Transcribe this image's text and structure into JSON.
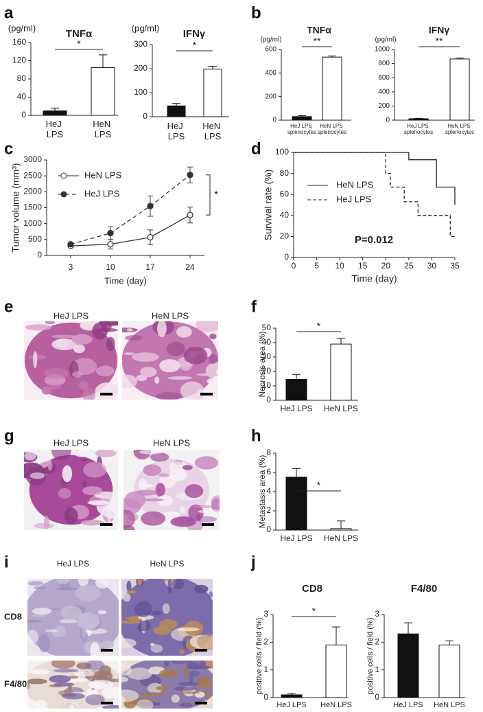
{
  "panel_labels": [
    "a",
    "b",
    "c",
    "d",
    "e",
    "f",
    "g",
    "h",
    "i",
    "j"
  ],
  "chart_data": [
    {
      "type": "bar",
      "title": "TNFα",
      "ylabel": "(pg/ml)",
      "categories": [
        "HeJ\nLPS",
        "HeN\nLPS"
      ],
      "values": [
        10,
        105
      ],
      "errors": [
        6,
        28
      ],
      "colors": [
        "#111111",
        "#ffffff"
      ],
      "ylim": [
        0,
        160
      ],
      "yticks": [
        0,
        40,
        80,
        120,
        160
      ],
      "significance": "*"
    },
    {
      "type": "bar",
      "title": "IFNγ",
      "ylabel": "(pg/ml)",
      "categories": [
        "HeJ\nLPS",
        "HeN\nLPS"
      ],
      "values": [
        45,
        198
      ],
      "errors": [
        10,
        12
      ],
      "colors": [
        "#111111",
        "#ffffff"
      ],
      "ylim": [
        0,
        300
      ],
      "yticks": [
        0,
        100,
        200,
        300
      ],
      "significance": "*"
    },
    {
      "type": "bar",
      "title": "TNFα",
      "ylabel": "(pg/ml)",
      "categories": [
        "HeJ LPS\nsplenocytes",
        "HeN LPS\nsplenocytes"
      ],
      "values": [
        30,
        535
      ],
      "errors": [
        8,
        10
      ],
      "colors": [
        "#111111",
        "#ffffff"
      ],
      "ylim": [
        0,
        600
      ],
      "yticks": [
        0,
        200,
        400,
        600
      ],
      "significance": "**"
    },
    {
      "type": "bar",
      "title": "IFNγ",
      "ylabel": "(pg/ml)",
      "categories": [
        "HeJ LPS\nsplenocytes",
        "HeN LPS\nsplenocytes"
      ],
      "values": [
        20,
        865
      ],
      "errors": [
        5,
        15
      ],
      "colors": [
        "#111111",
        "#ffffff"
      ],
      "ylim": [
        0,
        1000
      ],
      "yticks": [
        0,
        200,
        400,
        600,
        800,
        1000
      ],
      "significance": "**"
    },
    {
      "type": "line",
      "ylabel": "Tumor volume (mm³)",
      "xlabel": "Time (day)",
      "categories": [
        "3",
        "10",
        "17",
        "24"
      ],
      "series": [
        {
          "name": "HeN LPS",
          "color": "#333333",
          "line_style": "solid",
          "marker": "open",
          "values": [
            300,
            350,
            570,
            1270
          ],
          "errors": [
            40,
            150,
            230,
            250
          ]
        },
        {
          "name": "HeJ LPS",
          "color": "#333333",
          "line_style": "dashed",
          "marker": "filled",
          "values": [
            350,
            700,
            1550,
            2530
          ],
          "errors": [
            30,
            200,
            320,
            250
          ]
        }
      ],
      "ylim": [
        0,
        3000
      ],
      "yticks": [
        0,
        500,
        1000,
        1500,
        2000,
        2500,
        3000
      ],
      "significance": "*"
    },
    {
      "type": "step",
      "ylabel": "Survival rate (%)",
      "xlabel": "Time (day)",
      "annotation": "P=0.012",
      "series": [
        {
          "name": "HeN LPS",
          "color": "#222222",
          "line_style": "solid",
          "x": [
            0,
            25,
            31,
            35
          ],
          "values": [
            100,
            93,
            67,
            50
          ]
        },
        {
          "name": "HeJ LPS",
          "color": "#222222",
          "line_style": "dashed",
          "x": [
            0,
            20,
            21,
            24,
            27,
            34,
            35
          ],
          "values": [
            100,
            80,
            67,
            53,
            40,
            20,
            20
          ]
        }
      ],
      "xlim": [
        0,
        35
      ],
      "xticks": [
        0,
        5,
        10,
        15,
        20,
        25,
        30,
        35
      ],
      "ylim": [
        0,
        100
      ],
      "yticks": [
        0,
        20,
        40,
        60,
        80,
        100
      ]
    },
    {
      "type": "bar",
      "ylabel": "Necrosis area (%)",
      "categories": [
        "HeJ LPS",
        "HeN LPS"
      ],
      "values": [
        14.5,
        39
      ],
      "errors": [
        3.5,
        4
      ],
      "colors": [
        "#111111",
        "#ffffff"
      ],
      "ylim": [
        0,
        50
      ],
      "yticks": [
        0,
        10,
        20,
        30,
        40,
        50
      ],
      "significance": "*"
    },
    {
      "type": "bar",
      "ylabel": "Metastasis area (%)",
      "categories": [
        "HeJ LPS",
        "HeN LPS"
      ],
      "values": [
        5.5,
        0.15
      ],
      "errors": [
        0.9,
        0.8
      ],
      "colors": [
        "#111111",
        "#ffffff"
      ],
      "ylim": [
        0,
        8
      ],
      "yticks": [
        0,
        2,
        4,
        6,
        8
      ],
      "significance": "*"
    },
    {
      "type": "bar",
      "title": "CD8",
      "ylabel": "positive cells / field (%)",
      "categories": [
        "HeJ LPS",
        "HeN LPS"
      ],
      "values": [
        0.1,
        1.9
      ],
      "errors": [
        0.06,
        0.65
      ],
      "colors": [
        "#111111",
        "#ffffff"
      ],
      "ylim": [
        0,
        3
      ],
      "yticks": [
        0,
        1,
        2,
        3
      ],
      "significance": "*"
    },
    {
      "type": "bar",
      "title": "F4/80",
      "ylabel": "positive cells / field (%)",
      "categories": [
        "HeJ LPS",
        "HeN LPS"
      ],
      "values": [
        2.3,
        1.9
      ],
      "errors": [
        0.4,
        0.15
      ],
      "colors": [
        "#111111",
        "#ffffff"
      ],
      "ylim": [
        0,
        3
      ],
      "yticks": [
        0,
        1,
        2,
        3
      ]
    }
  ],
  "micrographs": [
    {
      "columns": [
        "HeJ LPS",
        "HeN LPS"
      ]
    },
    {
      "columns": [
        "HeJ LPS",
        "HeN LPS"
      ]
    },
    {
      "columns": [
        "HeJ LPS",
        "HeN LPS"
      ],
      "rows": [
        "CD8",
        "F4/80"
      ]
    }
  ]
}
